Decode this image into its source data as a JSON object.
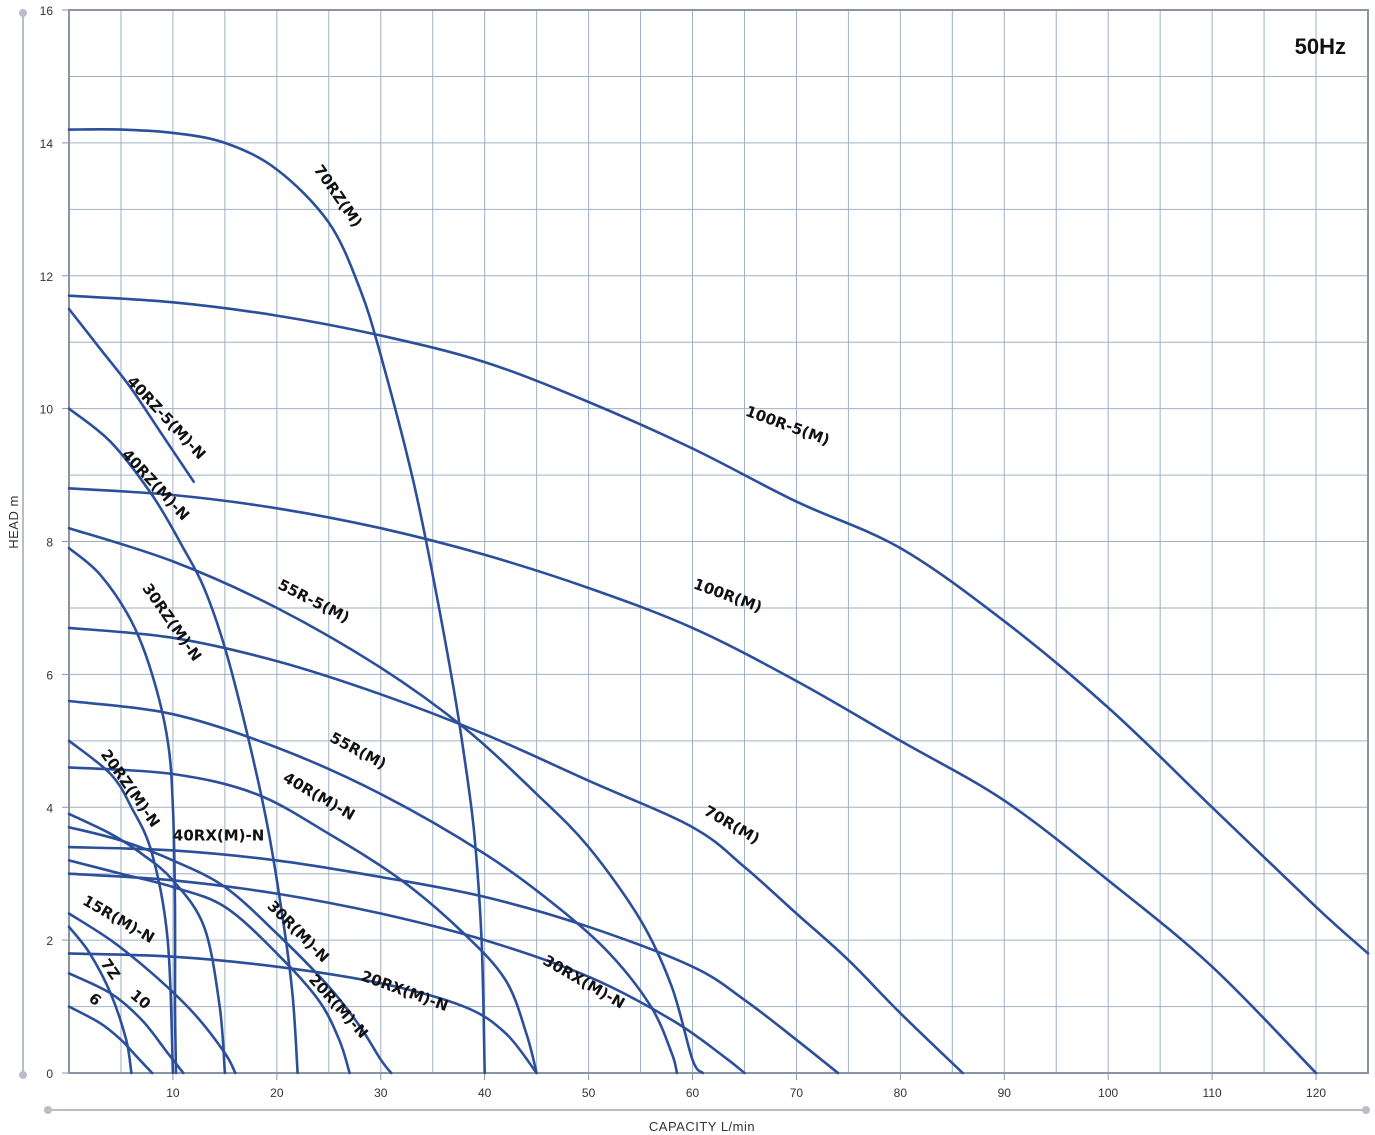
{
  "chart_data": {
    "type": "line",
    "title": "50Hz",
    "xlabel": "CAPACITY  L/min",
    "ylabel": "HEAD  m",
    "xlim": [
      0,
      125
    ],
    "ylim": [
      0,
      16
    ],
    "x_ticks": [
      10,
      20,
      30,
      40,
      50,
      60,
      70,
      80,
      90,
      100,
      110,
      120
    ],
    "y_ticks": [
      0,
      2,
      4,
      6,
      8,
      10,
      12,
      14,
      16
    ],
    "grid": true,
    "line_color": "#2b4f9b",
    "grid_color": "#9fb0c5",
    "series": [
      {
        "name": "70RZ(M)",
        "points": [
          [
            0,
            14.2
          ],
          [
            5,
            14.2
          ],
          [
            10,
            14.15
          ],
          [
            15,
            14.0
          ],
          [
            20,
            13.6
          ],
          [
            25,
            12.8
          ],
          [
            28,
            11.8
          ],
          [
            30,
            10.8
          ],
          [
            33,
            9.0
          ],
          [
            35,
            7.5
          ],
          [
            37,
            5.8
          ],
          [
            38,
            4.8
          ],
          [
            39,
            3.6
          ],
          [
            39.7,
            2.0
          ],
          [
            40,
            0
          ]
        ]
      },
      {
        "name": "100R-5(M)",
        "points": [
          [
            0,
            11.7
          ],
          [
            10,
            11.6
          ],
          [
            20,
            11.4
          ],
          [
            30,
            11.1
          ],
          [
            40,
            10.7
          ],
          [
            50,
            10.1
          ],
          [
            60,
            9.4
          ],
          [
            70,
            8.6
          ],
          [
            80,
            7.9
          ],
          [
            90,
            6.8
          ],
          [
            100,
            5.5
          ],
          [
            110,
            4.0
          ],
          [
            120,
            2.5
          ],
          [
            125,
            1.8
          ]
        ]
      },
      {
        "name": "100R(M)",
        "points": [
          [
            0,
            8.8
          ],
          [
            10,
            8.7
          ],
          [
            20,
            8.5
          ],
          [
            30,
            8.2
          ],
          [
            40,
            7.8
          ],
          [
            50,
            7.3
          ],
          [
            60,
            6.7
          ],
          [
            70,
            5.9
          ],
          [
            80,
            5.0
          ],
          [
            90,
            4.1
          ],
          [
            100,
            2.9
          ],
          [
            110,
            1.6
          ],
          [
            120,
            0
          ]
        ]
      },
      {
        "name": "40RZ-5(M)-N",
        "points": [
          [
            0,
            11.5
          ],
          [
            3,
            10.9
          ],
          [
            6,
            10.3
          ],
          [
            9,
            9.6
          ],
          [
            12,
            8.9
          ]
        ]
      },
      {
        "name": "40RZ(M)-N",
        "points": [
          [
            0,
            10.0
          ],
          [
            4,
            9.5
          ],
          [
            8,
            8.7
          ],
          [
            11,
            7.9
          ],
          [
            13,
            7.3
          ],
          [
            15,
            6.4
          ],
          [
            17,
            5.2
          ],
          [
            19,
            3.8
          ],
          [
            20.5,
            2.4
          ],
          [
            21.5,
            1.2
          ],
          [
            22,
            0
          ]
        ]
      },
      {
        "name": "55R-5(M)",
        "points": [
          [
            0,
            8.2
          ],
          [
            10,
            7.7
          ],
          [
            20,
            7.0
          ],
          [
            30,
            6.1
          ],
          [
            38,
            5.2
          ],
          [
            45,
            4.2
          ],
          [
            50,
            3.4
          ],
          [
            55,
            2.3
          ],
          [
            58,
            1.3
          ],
          [
            60,
            0.2
          ],
          [
            61,
            0
          ]
        ]
      },
      {
        "name": "30RZ(M)-N",
        "points": [
          [
            0,
            7.9
          ],
          [
            3,
            7.5
          ],
          [
            6,
            6.8
          ],
          [
            8,
            6.0
          ],
          [
            9.5,
            5.0
          ],
          [
            10,
            4.0
          ],
          [
            10.2,
            2.5
          ],
          [
            10.2,
            1.0
          ],
          [
            10.3,
            0
          ]
        ]
      },
      {
        "name": "70R(M)",
        "points": [
          [
            0,
            6.7
          ],
          [
            10,
            6.55
          ],
          [
            20,
            6.2
          ],
          [
            30,
            5.7
          ],
          [
            40,
            5.1
          ],
          [
            50,
            4.4
          ],
          [
            60,
            3.7
          ],
          [
            65,
            3.1
          ],
          [
            70,
            2.4
          ],
          [
            75,
            1.7
          ],
          [
            80,
            0.9
          ],
          [
            86,
            0
          ]
        ]
      },
      {
        "name": "55R(M)",
        "points": [
          [
            0,
            5.6
          ],
          [
            10,
            5.4
          ],
          [
            20,
            4.9
          ],
          [
            30,
            4.2
          ],
          [
            40,
            3.3
          ],
          [
            47,
            2.5
          ],
          [
            52,
            1.8
          ],
          [
            56,
            1.0
          ],
          [
            58,
            0.3
          ],
          [
            58.5,
            0
          ]
        ]
      },
      {
        "name": "40R(M)-N",
        "points": [
          [
            0,
            4.6
          ],
          [
            10,
            4.5
          ],
          [
            18,
            4.2
          ],
          [
            25,
            3.6
          ],
          [
            32,
            2.9
          ],
          [
            38,
            2.1
          ],
          [
            42,
            1.4
          ],
          [
            44,
            0.6
          ],
          [
            45,
            0
          ]
        ]
      },
      {
        "name": "20RZ(M)-N",
        "points": [
          [
            0,
            5.0
          ],
          [
            4,
            4.5
          ],
          [
            6,
            4.0
          ],
          [
            8,
            3.3
          ],
          [
            9.5,
            2.0
          ],
          [
            10,
            0
          ]
        ]
      },
      {
        "name": "40RX(M)-N",
        "points": [
          [
            0,
            3.4
          ],
          [
            10,
            3.35
          ],
          [
            20,
            3.2
          ],
          [
            30,
            2.95
          ],
          [
            40,
            2.65
          ],
          [
            50,
            2.2
          ],
          [
            60,
            1.6
          ],
          [
            65,
            1.1
          ],
          [
            70,
            0.5
          ],
          [
            74,
            0
          ]
        ]
      },
      {
        "name": "30RX(M)-N",
        "points": [
          [
            0,
            3.0
          ],
          [
            10,
            2.9
          ],
          [
            20,
            2.7
          ],
          [
            30,
            2.4
          ],
          [
            40,
            2.0
          ],
          [
            50,
            1.45
          ],
          [
            58,
            0.8
          ],
          [
            63,
            0.25
          ],
          [
            65,
            0
          ]
        ]
      },
      {
        "name": "30R(M)-N",
        "points": [
          [
            0,
            3.7
          ],
          [
            5,
            3.5
          ],
          [
            10,
            3.2
          ],
          [
            15,
            2.8
          ],
          [
            20,
            2.1
          ],
          [
            25,
            1.3
          ],
          [
            28,
            0.7
          ],
          [
            30,
            0.2
          ],
          [
            31,
            0
          ]
        ]
      },
      {
        "name": "20R(M)-N",
        "points": [
          [
            0,
            3.2
          ],
          [
            5,
            3.0
          ],
          [
            10,
            2.8
          ],
          [
            15,
            2.5
          ],
          [
            20,
            1.8
          ],
          [
            24,
            1.1
          ],
          [
            26,
            0.5
          ],
          [
            27,
            0
          ]
        ]
      },
      {
        "name": "20RX(M)-N",
        "points": [
          [
            0,
            1.8
          ],
          [
            10,
            1.75
          ],
          [
            20,
            1.6
          ],
          [
            30,
            1.35
          ],
          [
            38,
            1.0
          ],
          [
            42,
            0.6
          ],
          [
            45,
            0
          ]
        ]
      },
      {
        "name": "15R(M)-N",
        "points": [
          [
            0,
            2.4
          ],
          [
            4,
            2.0
          ],
          [
            8,
            1.5
          ],
          [
            12,
            0.9
          ],
          [
            15,
            0.3
          ],
          [
            16,
            0
          ]
        ]
      },
      {
        "name": "7Z",
        "points": [
          [
            0,
            2.2
          ],
          [
            2,
            1.8
          ],
          [
            4,
            1.2
          ],
          [
            5.5,
            0.5
          ],
          [
            6,
            0
          ]
        ]
      },
      {
        "name": "10",
        "points": [
          [
            0,
            1.5
          ],
          [
            4,
            1.2
          ],
          [
            7,
            0.8
          ],
          [
            9.5,
            0.3
          ],
          [
            11,
            0
          ]
        ]
      },
      {
        "name": "6",
        "points": [
          [
            0,
            1.0
          ],
          [
            3,
            0.75
          ],
          [
            5,
            0.5
          ],
          [
            6.5,
            0.25
          ],
          [
            8,
            0
          ]
        ]
      },
      {
        "name": "",
        "points": [
          [
            0,
            3.9
          ],
          [
            4,
            3.6
          ],
          [
            7,
            3.3
          ],
          [
            10,
            2.9
          ],
          [
            13,
            2.2
          ],
          [
            14.5,
            1.0
          ],
          [
            15,
            0
          ]
        ]
      }
    ],
    "labels": [
      {
        "text": "70RZ(M)",
        "x": 23.5,
        "y": 13.6,
        "angle": 55
      },
      {
        "text": "100R-5(M)",
        "x": 65,
        "y": 9.9,
        "angle": 20
      },
      {
        "text": "100R(M)",
        "x": 60,
        "y": 7.3,
        "angle": 20
      },
      {
        "text": "40RZ-5(M)-N",
        "x": 5.5,
        "y": 10.4,
        "angle": 47
      },
      {
        "text": "40RZ(M)-N",
        "x": 5,
        "y": 9.3,
        "angle": 47
      },
      {
        "text": "55R-5(M)",
        "x": 20,
        "y": 7.3,
        "angle": 27
      },
      {
        "text": "30RZ(M)-N",
        "x": 7,
        "y": 7.3,
        "angle": 55
      },
      {
        "text": "70R(M)",
        "x": 61,
        "y": 3.9,
        "angle": 30
      },
      {
        "text": "55R(M)",
        "x": 25,
        "y": 5.0,
        "angle": 28
      },
      {
        "text": "40R(M)-N",
        "x": 20.5,
        "y": 4.4,
        "angle": 30
      },
      {
        "text": "20RZ(M)-N",
        "x": 3,
        "y": 4.8,
        "angle": 55
      },
      {
        "text": "40RX(M)-N",
        "x": 10,
        "y": 3.5,
        "angle": 0
      },
      {
        "text": "30RX(M)-N",
        "x": 45.5,
        "y": 1.65,
        "angle": 30
      },
      {
        "text": "30R(M)-N",
        "x": 19,
        "y": 2.5,
        "angle": 45
      },
      {
        "text": "20R(M)-N",
        "x": 23,
        "y": 1.4,
        "angle": 48
      },
      {
        "text": "20RX(M)-N",
        "x": 28,
        "y": 1.4,
        "angle": 20
      },
      {
        "text": "15R(M)-N",
        "x": 1.2,
        "y": 2.55,
        "angle": 30
      },
      {
        "text": "7Z",
        "x": 3,
        "y": 1.65,
        "angle": 55
      },
      {
        "text": "10",
        "x": 5.8,
        "y": 1.15,
        "angle": 40
      },
      {
        "text": "6",
        "x": 1.8,
        "y": 1.1,
        "angle": 40
      }
    ]
  }
}
